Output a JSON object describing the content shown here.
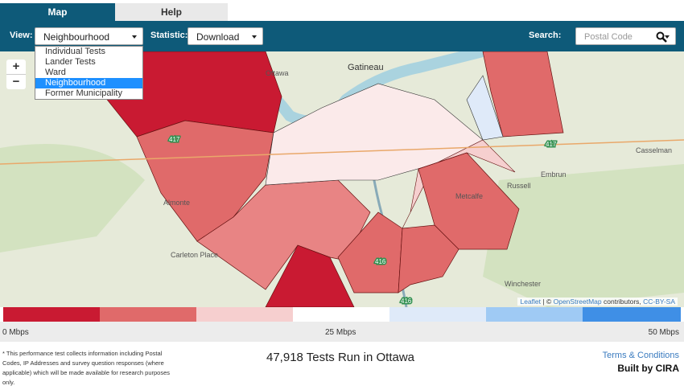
{
  "tabs": [
    "Map",
    "Help"
  ],
  "toolbar": {
    "view_label": "View:",
    "view_value": "Neighbourhood",
    "view_options": [
      "Individual Tests",
      "Lander Tests",
      "Ward",
      "Neighbourhood",
      "Former Municipality"
    ],
    "statistic_label": "Statistic:",
    "statistic_value": "Download",
    "search_label": "Search:",
    "search_placeholder": "Postal Code"
  },
  "map": {
    "zoom_in": "+",
    "zoom_out": "−",
    "place_labels": [
      "Gatineau",
      "Ottawa",
      "Casselman",
      "Embrun",
      "Russell",
      "Metcalfe",
      "Almonte",
      "Carleton Place",
      "Winchester"
    ],
    "road_labels": [
      "417",
      "417",
      "416",
      "416"
    ],
    "attribution": {
      "leaflet": "Leaflet",
      "separator": "| ©",
      "osm": "OpenStreetMap",
      "contributors": "contributors,",
      "license": "CC-BY-SA"
    }
  },
  "legend": {
    "labels": [
      "0 Mbps",
      "25 Mbps",
      "50 Mbps"
    ]
  },
  "footer": {
    "disclaimer": "* This performance test collects information including Postal Codes, IP Addresses and survey question responses (where applicable) which will be made available for research purposes only.",
    "summary": "47,918 Tests Run in Ottawa",
    "terms": "Terms & Conditions",
    "credit": "Built by CIRA"
  }
}
